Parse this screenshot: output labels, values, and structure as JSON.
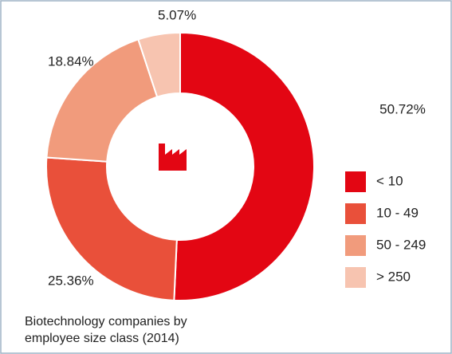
{
  "chart_data": {
    "type": "donut",
    "title": "Biotechnology companies by employee size class (2014)",
    "categories": [
      "< 10",
      "10 - 49",
      "50 - 249",
      "> 250"
    ],
    "values": [
      50.72,
      25.36,
      18.84,
      5.07
    ],
    "value_labels": [
      "50.72%",
      "25.36%",
      "18.84%",
      "5.07%"
    ],
    "colors": [
      "#e30613",
      "#e9503a",
      "#f19b7c",
      "#f7c4b0"
    ],
    "legend": "right"
  }
}
